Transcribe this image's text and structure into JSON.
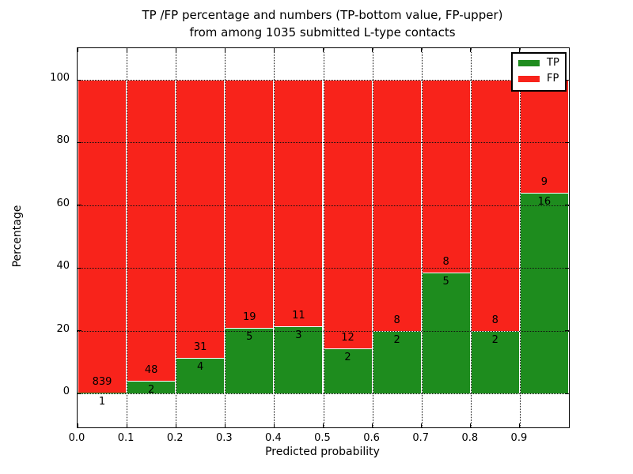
{
  "chart_data": {
    "type": "bar",
    "stacked": true,
    "percentage_stack": true,
    "title_line1": "TP /FP percentage and numbers (TP-bottom value, FP-upper)",
    "title_line2": "from among 1035 submitted L-type contacts",
    "xlabel": "Predicted probability",
    "ylabel": "Percentage",
    "total_contacts": 1035,
    "categories": [
      "0.0",
      "0.1",
      "0.2",
      "0.3",
      "0.4",
      "0.5",
      "0.6",
      "0.7",
      "0.8",
      "0.9"
    ],
    "bin_width": 0.1,
    "series": [
      {
        "name": "TP",
        "color": "#1e8c1e",
        "counts": [
          1,
          2,
          4,
          5,
          3,
          2,
          2,
          5,
          2,
          16
        ],
        "percent": [
          0.12,
          4.0,
          11.43,
          20.83,
          21.43,
          14.29,
          20.0,
          38.46,
          20.0,
          64.0
        ]
      },
      {
        "name": "FP",
        "color": "#f8231b",
        "counts": [
          839,
          48,
          31,
          19,
          11,
          12,
          8,
          8,
          8,
          9
        ],
        "percent": [
          99.88,
          96.0,
          88.57,
          79.17,
          78.57,
          85.71,
          80.0,
          61.54,
          80.0,
          36.0
        ]
      }
    ],
    "yticks": [
      0,
      20,
      40,
      60,
      80,
      100
    ],
    "xticks": [
      "0.0",
      "0.1",
      "0.2",
      "0.3",
      "0.4",
      "0.5",
      "0.6",
      "0.7",
      "0.8",
      "0.9"
    ],
    "xlim": [
      0.0,
      1.0
    ],
    "ylim": [
      -11,
      110
    ],
    "grid": true,
    "grid_style": "dotted",
    "legend_position": "upper right",
    "legend": [
      {
        "label": "TP",
        "color": "#1e8c1e"
      },
      {
        "label": "FP",
        "color": "#f8231b"
      }
    ]
  }
}
